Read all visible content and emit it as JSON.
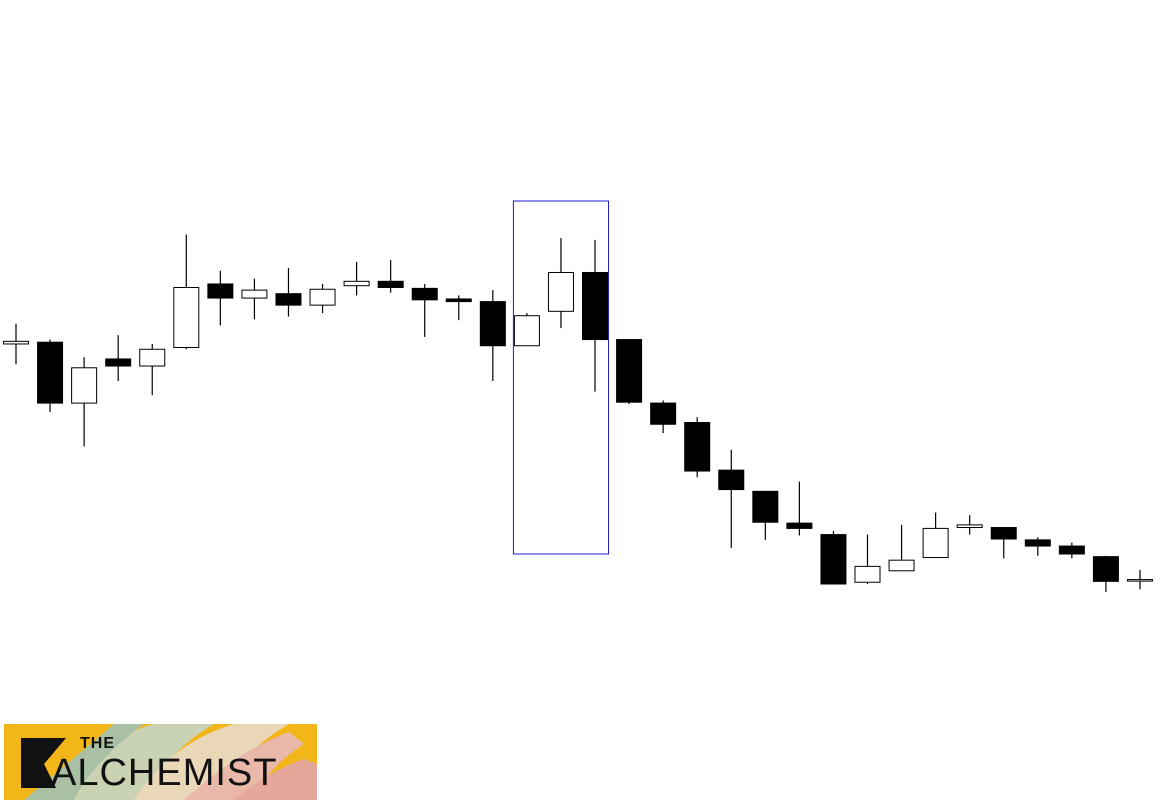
{
  "chart_data": {
    "type": "candlestick",
    "ylim": [
      0,
      100
    ],
    "candles": [
      {
        "o": 53.8,
        "h": 56.1,
        "l": 51.5,
        "c": 54.1
      },
      {
        "o": 54.0,
        "h": 54.3,
        "l": 46.1,
        "c": 47.1
      },
      {
        "o": 47.1,
        "h": 52.3,
        "l": 42.2,
        "c": 51.1
      },
      {
        "o": 52.1,
        "h": 54.8,
        "l": 49.6,
        "c": 51.3
      },
      {
        "o": 51.3,
        "h": 53.8,
        "l": 48.0,
        "c": 53.2
      },
      {
        "o": 53.4,
        "h": 66.2,
        "l": 53.2,
        "c": 60.2
      },
      {
        "o": 60.6,
        "h": 62.1,
        "l": 55.9,
        "c": 59.0
      },
      {
        "o": 59.0,
        "h": 61.2,
        "l": 56.6,
        "c": 59.9
      },
      {
        "o": 59.5,
        "h": 62.4,
        "l": 56.9,
        "c": 58.2
      },
      {
        "o": 58.2,
        "h": 60.6,
        "l": 57.3,
        "c": 60.0
      },
      {
        "o": 60.4,
        "h": 63.1,
        "l": 59.3,
        "c": 60.9
      },
      {
        "o": 60.9,
        "h": 63.3,
        "l": 59.6,
        "c": 60.2
      },
      {
        "o": 60.1,
        "h": 60.6,
        "l": 54.6,
        "c": 58.8
      },
      {
        "o": 58.9,
        "h": 59.3,
        "l": 56.5,
        "c": 58.6
      },
      {
        "o": 58.6,
        "h": 59.9,
        "l": 49.6,
        "c": 53.6
      },
      {
        "o": 53.6,
        "h": 57.3,
        "l": 53.6,
        "c": 57.0
      },
      {
        "o": 57.5,
        "h": 65.8,
        "l": 55.6,
        "c": 61.9
      },
      {
        "o": 61.9,
        "h": 65.6,
        "l": 48.4,
        "c": 54.3
      },
      {
        "o": 54.3,
        "h": 54.3,
        "l": 47.0,
        "c": 47.2
      },
      {
        "o": 47.1,
        "h": 47.4,
        "l": 43.7,
        "c": 44.7
      },
      {
        "o": 44.9,
        "h": 45.5,
        "l": 38.7,
        "c": 39.4
      },
      {
        "o": 39.5,
        "h": 41.8,
        "l": 30.7,
        "c": 37.3
      },
      {
        "o": 37.1,
        "h": 37.1,
        "l": 31.6,
        "c": 33.6
      },
      {
        "o": 33.5,
        "h": 38.2,
        "l": 32.1,
        "c": 32.9
      },
      {
        "o": 32.2,
        "h": 32.6,
        "l": 26.8,
        "c": 26.6
      },
      {
        "o": 26.8,
        "h": 32.2,
        "l": 26.6,
        "c": 28.6
      },
      {
        "o": 28.1,
        "h": 33.3,
        "l": 28.1,
        "c": 29.3
      },
      {
        "o": 29.6,
        "h": 34.7,
        "l": 29.6,
        "c": 32.9
      },
      {
        "o": 33.0,
        "h": 34.4,
        "l": 32.2,
        "c": 33.3
      },
      {
        "o": 33.0,
        "h": 32.8,
        "l": 29.5,
        "c": 31.7
      },
      {
        "o": 31.6,
        "h": 31.9,
        "l": 29.8,
        "c": 30.9
      },
      {
        "o": 30.9,
        "h": 31.3,
        "l": 29.5,
        "c": 30.0
      },
      {
        "o": 29.7,
        "h": 29.8,
        "l": 25.7,
        "c": 26.9
      },
      {
        "o": 27.1,
        "h": 28.2,
        "l": 26.0,
        "c": 27.1
      }
    ],
    "highlight": {
      "start_index": 15,
      "end_index": 17,
      "high": 70.0,
      "low": 30.0
    }
  },
  "colors": {
    "bullish_fill": "#ffffff",
    "bearish_fill": "#000000",
    "outline": "#000000",
    "highlight": "#1c1ccc",
    "logo_bg": "#f3b618"
  },
  "logo": {
    "line1": "THE",
    "line2": "ALCHEMIST"
  }
}
